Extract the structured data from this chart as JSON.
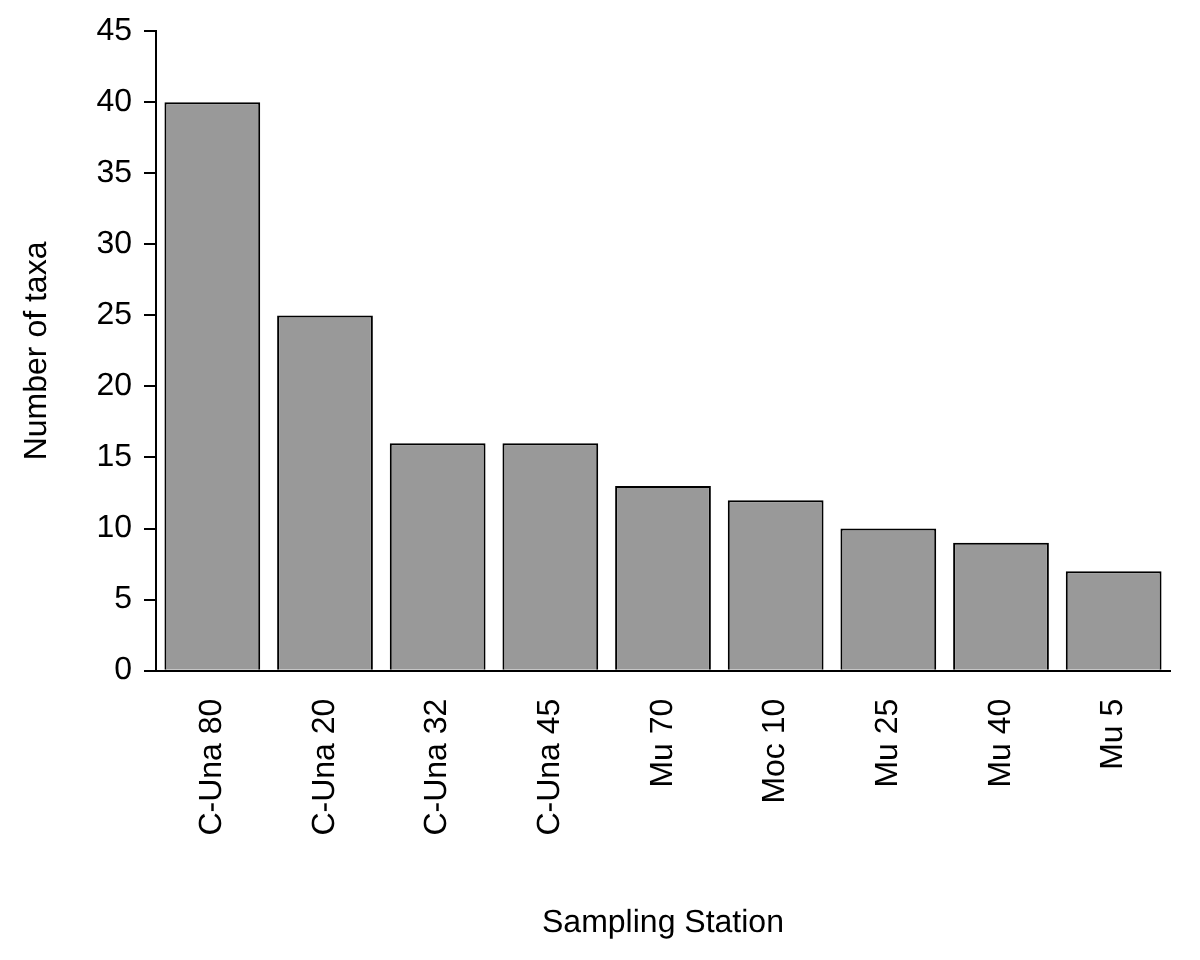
{
  "chart_data": {
    "type": "bar",
    "xlabel": "Sampling Station",
    "ylabel": "Number of taxa",
    "categories": [
      "C-Una 80",
      "C-Una 20",
      "C-Una 32",
      "C-Una 45",
      "Mu 70",
      "Moc 10",
      "Mu 25",
      "Mu 40",
      "Mu 5"
    ],
    "values": [
      40,
      25,
      16,
      16,
      13,
      12,
      10,
      9,
      7
    ],
    "color": "#999999",
    "ylim": [
      0,
      45
    ],
    "yticks": [
      0,
      5,
      10,
      15,
      20,
      25,
      30,
      35,
      40,
      45
    ],
    "grid": false,
    "legend": false
  }
}
